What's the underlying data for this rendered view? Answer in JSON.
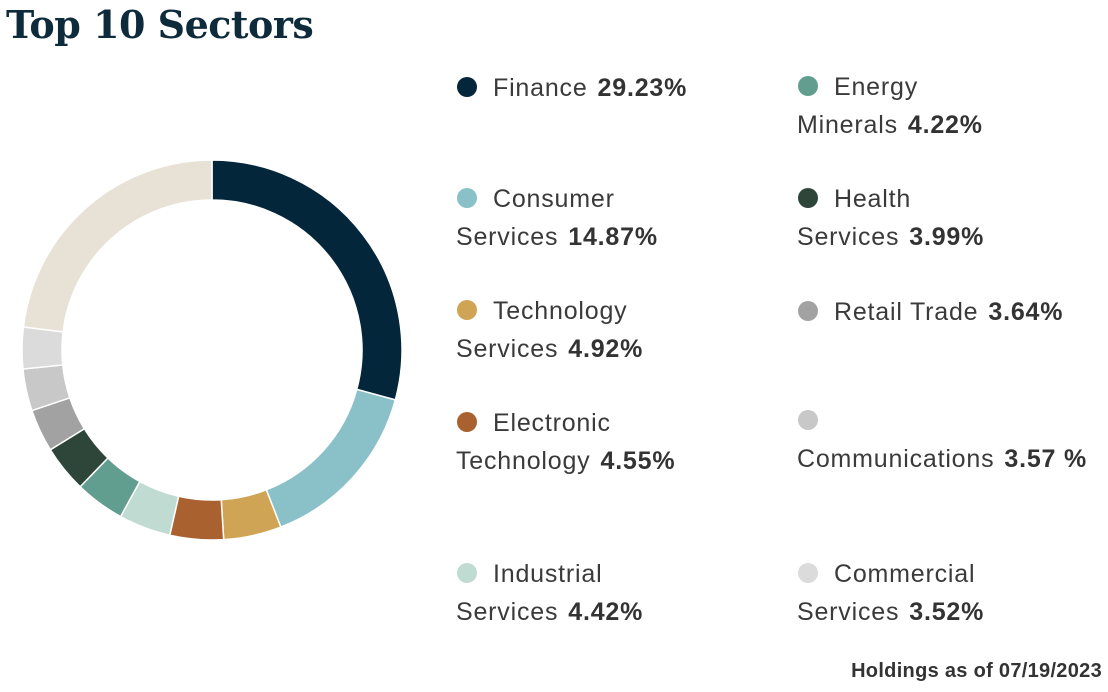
{
  "title": "Top 10 Sectors",
  "footnote": "Holdings as of 07/19/2023",
  "chart_data": {
    "type": "pie",
    "title": "Top 10 Sectors",
    "slices": [
      {
        "label": "Finance",
        "value": 29.23,
        "value_label": "29.23%",
        "color": "#03263b"
      },
      {
        "label": "Consumer Services",
        "value": 14.87,
        "value_label": "14.87%",
        "color": "#8ac1c8"
      },
      {
        "label": "Technology Services",
        "value": 4.92,
        "value_label": "4.92%",
        "color": "#cfa455"
      },
      {
        "label": "Electronic Technology",
        "value": 4.55,
        "value_label": "4.55%",
        "color": "#aa6130"
      },
      {
        "label": "Industrial Services",
        "value": 4.42,
        "value_label": "4.42%",
        "color": "#bfdbd2"
      },
      {
        "label": "Energy Minerals",
        "value": 4.22,
        "value_label": "4.22%",
        "color": "#629e8f"
      },
      {
        "label": "Health Services",
        "value": 3.99,
        "value_label": "3.99%",
        "color": "#2e453a"
      },
      {
        "label": "Retail Trade",
        "value": 3.64,
        "value_label": "3.64%",
        "color": "#a2a2a2"
      },
      {
        "label": "Communications",
        "value": 3.57,
        "value_label": "3.57 %",
        "color": "#c8c8c8"
      },
      {
        "label": "Commercial Services",
        "value": 3.52,
        "value_label": "3.52%",
        "color": "#dbdbdb"
      }
    ],
    "remainder": {
      "value": 23.07,
      "color": "#e8e2d6"
    }
  }
}
